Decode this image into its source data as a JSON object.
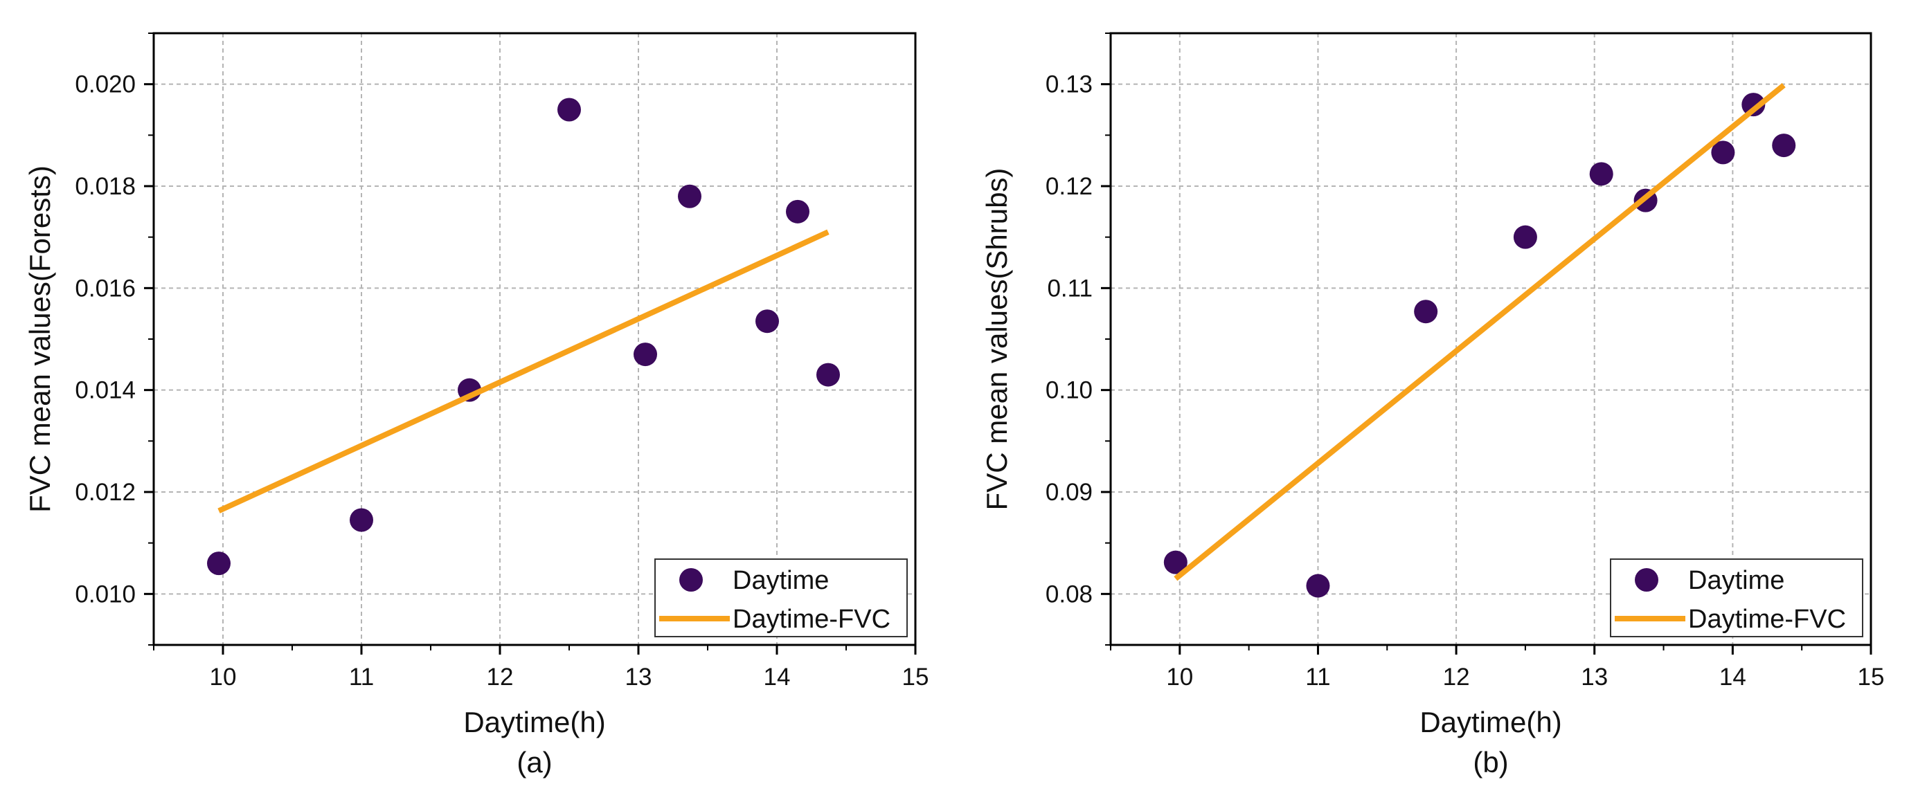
{
  "colors": {
    "points": "#3b0a5c",
    "fit_line": "#f7a21b",
    "grid": "#b4b4b4",
    "axes": "#000000"
  },
  "chart_data": [
    {
      "type": "scatter",
      "panel_label": "(a)",
      "xlabel": "Daytime(h)",
      "ylabel": "FVC mean values(Forests)",
      "xlim": [
        9.5,
        15
      ],
      "ylim": [
        0.009,
        0.021
      ],
      "xticks": [
        "10",
        "11",
        "12",
        "13",
        "14",
        "15"
      ],
      "yticks": [
        "0.010",
        "0.012",
        "0.014",
        "0.016",
        "0.018",
        "0.020"
      ],
      "grid": true,
      "legend_position": "bottom-right",
      "series": [
        {
          "name": "Daytime",
          "kind": "scatter",
          "x": [
            9.97,
            11.0,
            11.78,
            12.5,
            13.05,
            13.37,
            13.93,
            14.15,
            14.37
          ],
          "y": [
            0.0106,
            0.01145,
            0.014,
            0.0195,
            0.0147,
            0.0178,
            0.01535,
            0.0175,
            0.0143
          ]
        },
        {
          "name": "Daytime-FVC",
          "kind": "line",
          "x": [
            9.97,
            14.37
          ],
          "y": [
            0.01163,
            0.0171
          ]
        }
      ]
    },
    {
      "type": "scatter",
      "panel_label": "(b)",
      "xlabel": "Daytime(h)",
      "ylabel": "FVC mean values(Shrubs)",
      "xlim": [
        9.5,
        15
      ],
      "ylim": [
        0.075,
        0.135
      ],
      "xticks": [
        "10",
        "11",
        "12",
        "13",
        "14",
        "15"
      ],
      "yticks": [
        "0.08",
        "0.09",
        "0.10",
        "0.11",
        "0.12",
        "0.13"
      ],
      "grid": true,
      "legend_position": "bottom-right",
      "series": [
        {
          "name": "Daytime",
          "kind": "scatter",
          "x": [
            9.97,
            11.0,
            11.78,
            12.5,
            13.05,
            13.37,
            13.93,
            14.15,
            14.37
          ],
          "y": [
            0.0831,
            0.0808,
            0.1077,
            0.115,
            0.1212,
            0.1186,
            0.1233,
            0.128,
            0.124
          ]
        },
        {
          "name": "Daytime-FVC",
          "kind": "line",
          "x": [
            9.97,
            14.37
          ],
          "y": [
            0.0815,
            0.1299
          ]
        }
      ]
    }
  ]
}
